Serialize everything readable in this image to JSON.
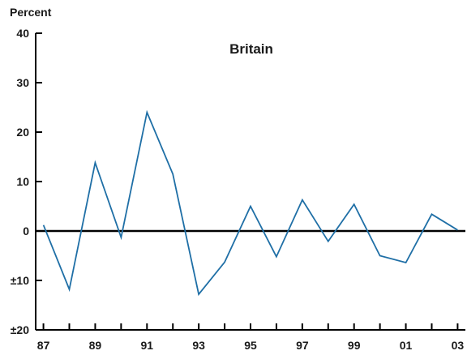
{
  "chart_data": {
    "type": "line",
    "title": "Britain",
    "ylabel": "Percent",
    "xlabel": "",
    "x": [
      1987,
      1988,
      1989,
      1990,
      1991,
      1992,
      1993,
      1994,
      1995,
      1996,
      1997,
      1998,
      1999,
      2000,
      2001,
      2002,
      2003
    ],
    "series": [
      {
        "values": [
          1.2,
          -11.8,
          13.8,
          -1.3,
          24.0,
          11.5,
          -12.8,
          -6.3,
          5.0,
          -5.2,
          6.3,
          -2.1,
          5.4,
          -5.0,
          -6.4,
          3.4,
          0.2
        ]
      }
    ],
    "ylim": [
      -20,
      40
    ],
    "xlim": [
      1986.7,
      2003.3
    ],
    "y_ticks": [
      {
        "value": 40,
        "label": "40"
      },
      {
        "value": 30,
        "label": "30"
      },
      {
        "value": 20,
        "label": "20"
      },
      {
        "value": 10,
        "label": "10"
      },
      {
        "value": 0,
        "label": "0"
      },
      {
        "value": -10,
        "label": "±10"
      },
      {
        "value": -20,
        "label": "±20"
      }
    ],
    "x_tick_values": [
      1987,
      1988,
      1989,
      1990,
      1991,
      1992,
      1993,
      1994,
      1995,
      1996,
      1997,
      1998,
      1999,
      2000,
      2001,
      2002,
      2003
    ],
    "x_labels": [
      {
        "value": 1987,
        "label": "87"
      },
      {
        "value": 1989,
        "label": "89"
      },
      {
        "value": 1991,
        "label": "91"
      },
      {
        "value": 1993,
        "label": "93"
      },
      {
        "value": 1995,
        "label": "95"
      },
      {
        "value": 1997,
        "label": "97"
      },
      {
        "value": 1999,
        "label": "99"
      },
      {
        "value": 2001,
        "label": "01"
      },
      {
        "value": 2003,
        "label": "03"
      }
    ],
    "zero_line": true,
    "grid": false,
    "colors": {
      "line": "#1f6fa6",
      "axis": "#000000"
    }
  }
}
